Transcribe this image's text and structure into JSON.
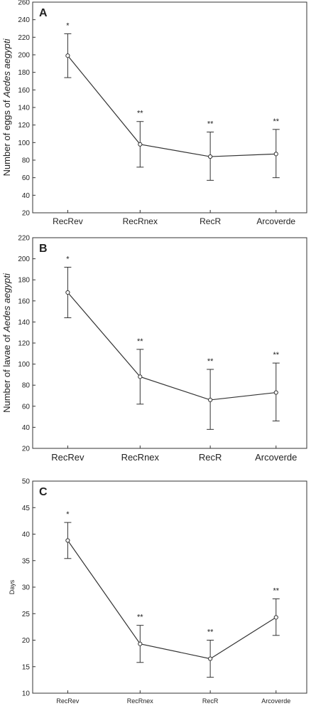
{
  "chart_data": [
    {
      "type": "line",
      "panel_label": "A",
      "ylabel_prefix": "Number of eggs of ",
      "ylabel_species": "Aedes aegypti",
      "categories": [
        "RecRev",
        "RecRnex",
        "RecR",
        "Arcoverde"
      ],
      "ylim": [
        20,
        260
      ],
      "yticks": [
        20,
        40,
        60,
        80,
        100,
        120,
        140,
        160,
        180,
        200,
        220,
        240,
        260
      ],
      "series": [
        {
          "values": [
            199,
            98,
            84,
            87
          ],
          "err_low": [
            174,
            72,
            57,
            60
          ],
          "err_high": [
            224,
            124,
            112,
            115
          ],
          "annotations": [
            "*",
            "**",
            "**",
            "**"
          ]
        }
      ],
      "grid": false
    },
    {
      "type": "line",
      "panel_label": "B",
      "ylabel_prefix": "Number of lavae of ",
      "ylabel_species": "Aedes aegypti",
      "categories": [
        "RecRev",
        "RecRnex",
        "RecR",
        "Arcoverde"
      ],
      "ylim": [
        20,
        220
      ],
      "yticks": [
        20,
        40,
        60,
        80,
        100,
        120,
        140,
        160,
        180,
        200,
        220
      ],
      "series": [
        {
          "values": [
            168,
            88,
            66,
            73
          ],
          "err_low": [
            144,
            62,
            38,
            46
          ],
          "err_high": [
            192,
            114,
            95,
            101
          ],
          "annotations": [
            "*",
            "**",
            "**",
            "**"
          ]
        }
      ],
      "grid": false
    },
    {
      "type": "line",
      "panel_label": "C",
      "ylabel_prefix": "Days",
      "ylabel_species": "",
      "categories": [
        "RecRev",
        "RecRnex",
        "RecR",
        "Arcoverde"
      ],
      "ylim": [
        10,
        50
      ],
      "yticks": [
        10,
        15,
        20,
        25,
        30,
        35,
        40,
        45,
        50
      ],
      "series": [
        {
          "values": [
            38.8,
            19.3,
            16.5,
            24.3
          ],
          "err_low": [
            35.4,
            15.8,
            13.0,
            20.9
          ],
          "err_high": [
            42.2,
            22.8,
            20.0,
            27.8
          ],
          "annotations": [
            "*",
            "**",
            "**",
            "**"
          ]
        }
      ],
      "grid": false
    }
  ]
}
